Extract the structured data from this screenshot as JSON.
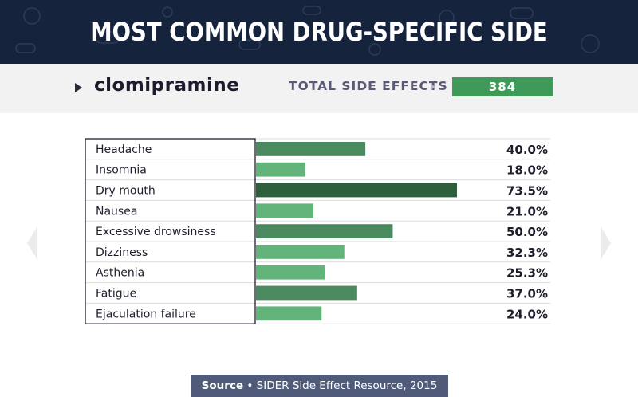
{
  "header": {
    "title": "MOST COMMON DRUG-SPECIFIC SIDE EFFECTS"
  },
  "drug": {
    "name": "clomipramine",
    "total_label": "TOTAL SIDE EFFECTS",
    "total_value": "384"
  },
  "source": {
    "label": "Source",
    "separator": "•",
    "text": "SIDER Side Effect Resource, 2015"
  },
  "colors": {
    "header_bg": "#16233d",
    "bar_dark": "#2e5f3c",
    "bar_mid": "#4a8a5e",
    "bar_light": "#63b47a",
    "total_box": "#3f9a59"
  },
  "chart_data": {
    "type": "bar",
    "orientation": "horizontal",
    "title": "",
    "xlabel": "",
    "ylabel": "",
    "xlim": [
      0,
      100
    ],
    "grid": false,
    "categories": [
      "Headache",
      "Insomnia",
      "Dry mouth",
      "Nausea",
      "Excessive drowsiness",
      "Dizziness",
      "Asthenia",
      "Fatigue",
      "Ejaculation failure"
    ],
    "values": [
      40.0,
      18.0,
      73.5,
      21.0,
      50.0,
      32.3,
      25.3,
      37.0,
      24.0
    ],
    "value_labels": [
      "40.0%",
      "18.0%",
      "73.5%",
      "21.0%",
      "50.0%",
      "32.3%",
      "25.3%",
      "37.0%",
      "24.0%"
    ]
  }
}
